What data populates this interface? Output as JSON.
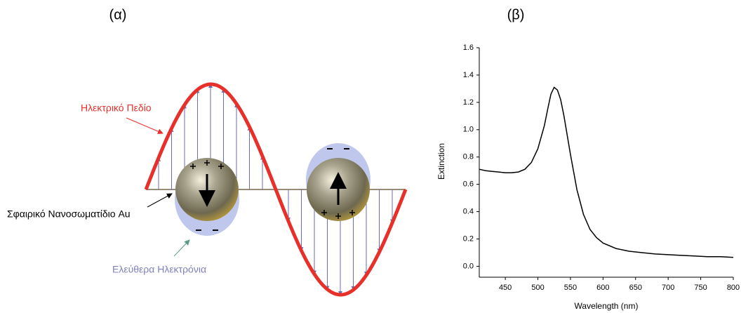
{
  "panels": [
    "(α)",
    "(β)"
  ],
  "diagram": {
    "field_label": "Ηλεκτρικό Πεδίο",
    "particle_label": "Σφαιρικό Νανοσωματίδιο Au",
    "electrons_label": "Ελεύθερα Ηλεκτρόνια"
  },
  "chart_data": {
    "type": "line",
    "x_label": "Wavelength (nm)",
    "y_label": "Extinction",
    "color": "#000000",
    "grid": false,
    "x": [
      410,
      420,
      430,
      440,
      450,
      460,
      470,
      480,
      490,
      500,
      510,
      515,
      520,
      525,
      530,
      535,
      540,
      550,
      560,
      570,
      580,
      590,
      600,
      620,
      640,
      660,
      680,
      700,
      720,
      740,
      760,
      780,
      800
    ],
    "values": [
      0.71,
      0.7,
      0.695,
      0.69,
      0.685,
      0.685,
      0.69,
      0.71,
      0.76,
      0.86,
      1.03,
      1.15,
      1.26,
      1.31,
      1.29,
      1.22,
      1.1,
      0.82,
      0.56,
      0.38,
      0.27,
      0.21,
      0.17,
      0.13,
      0.11,
      0.1,
      0.09,
      0.085,
      0.08,
      0.075,
      0.07,
      0.07,
      0.065
    ],
    "xlim": [
      410,
      800
    ],
    "xticks": [
      450,
      500,
      550,
      600,
      650,
      700,
      750,
      800
    ],
    "ylim": [
      -0.08,
      1.6
    ],
    "yticks": [
      {
        "value": 0,
        "label": "0.0"
      },
      0.2,
      0.4,
      0.6,
      0.8,
      {
        "value": 1,
        "label": "1.0"
      },
      1.2,
      1.4,
      1.6
    ]
  }
}
